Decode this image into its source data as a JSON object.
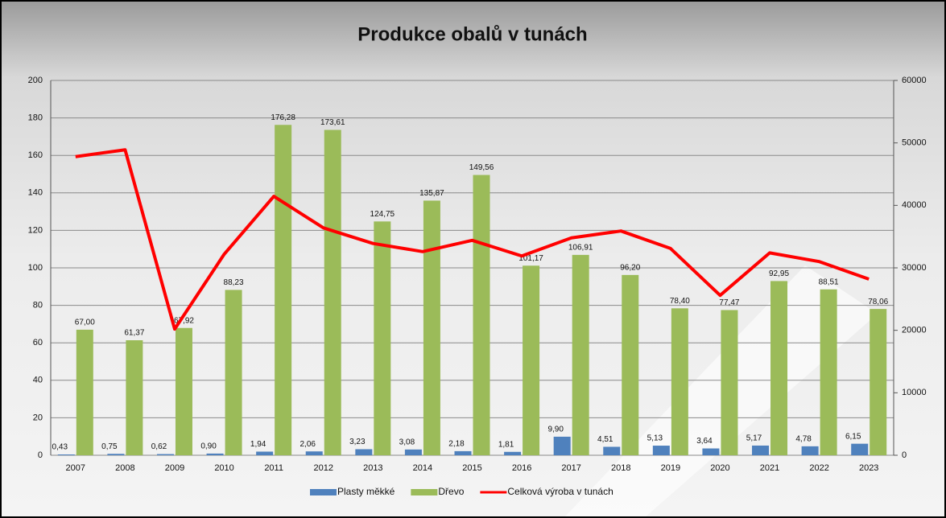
{
  "chart_data": {
    "type": "bar-line",
    "title": "Produkce obalů v tunách",
    "categories": [
      "2007",
      "2008",
      "2009",
      "2010",
      "2011",
      "2012",
      "2013",
      "2014",
      "2015",
      "2016",
      "2017",
      "2018",
      "2019",
      "2020",
      "2021",
      "2022",
      "2023"
    ],
    "series": [
      {
        "name": "Plasty měkké",
        "color": "#4f81bd",
        "type": "bar",
        "values": [
          0.43,
          0.75,
          0.62,
          0.9,
          1.94,
          2.06,
          3.23,
          3.08,
          2.18,
          1.81,
          9.9,
          4.51,
          5.13,
          3.64,
          5.17,
          4.78,
          6.15
        ],
        "value_labels": [
          "0,43",
          "0,75",
          "0,62",
          "0,90",
          "1,94",
          "2,06",
          "3,23",
          "3,08",
          "2,18",
          "1,81",
          "9,90",
          "4,51",
          "5,13",
          "3,64",
          "5,17",
          "4,78",
          "6,15"
        ]
      },
      {
        "name": "Dřevo",
        "color": "#9bbb59",
        "type": "bar",
        "values": [
          67.0,
          61.37,
          67.92,
          88.23,
          176.28,
          173.61,
          124.75,
          135.87,
          149.56,
          101.17,
          106.91,
          96.2,
          78.4,
          77.47,
          92.95,
          88.51,
          78.06
        ],
        "value_labels": [
          "67,00",
          "61,37",
          "67,92",
          "88,23",
          "176,28",
          "173,61",
          "124,75",
          "135,87",
          "149,56",
          "101,17",
          "106,91",
          "96,20",
          "78,40",
          "77,47",
          "92,95",
          "88,51",
          "78,06"
        ]
      },
      {
        "name": "Celková výroba v tunách",
        "color": "#ff0000",
        "type": "line",
        "axis": "y2",
        "values": [
          47800,
          48900,
          20200,
          32200,
          41450,
          36400,
          33900,
          32600,
          34400,
          31900,
          34800,
          35900,
          33100,
          25600,
          32400,
          31000,
          28200
        ]
      }
    ],
    "ylim": [
      0,
      200
    ],
    "yticks": [
      0,
      20,
      40,
      60,
      80,
      100,
      120,
      140,
      160,
      180,
      200
    ],
    "y2lim": [
      0,
      60000
    ],
    "y2ticks": [
      0,
      10000,
      20000,
      30000,
      40000,
      50000,
      60000
    ],
    "grid": true,
    "legend": "bottom"
  }
}
